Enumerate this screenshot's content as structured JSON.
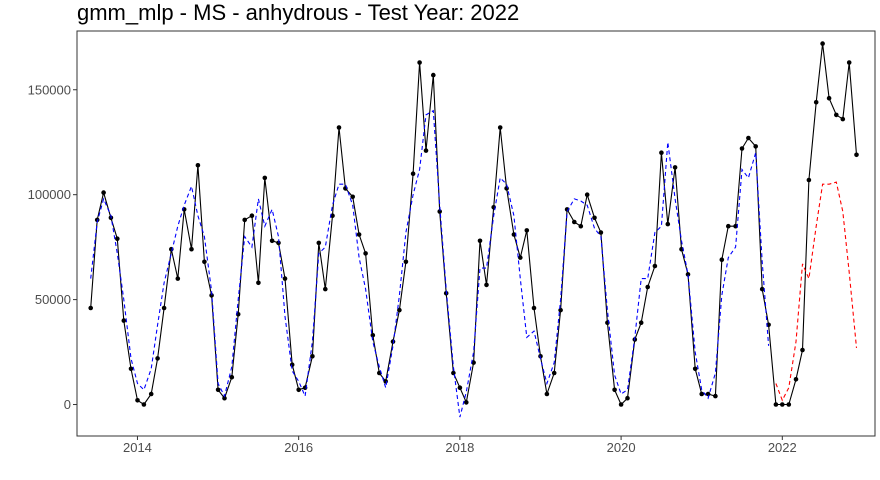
{
  "chart_data": {
    "type": "line",
    "title": "gmm_mlp - MS - anhydrous - Test Year: 2022",
    "xlabel": "",
    "ylabel": "",
    "xlim": [
      2013.25,
      2023.15
    ],
    "ylim": [
      -15000,
      178000
    ],
    "x_ticks": [
      2014,
      2016,
      2018,
      2020,
      2022
    ],
    "x_tick_labels": [
      "2014",
      "2016",
      "2018",
      "2020",
      "2022"
    ],
    "y_ticks": [
      0,
      50000,
      100000,
      150000
    ],
    "y_tick_labels": [
      "0",
      "50000",
      "100000",
      "150000"
    ],
    "grid": false,
    "legend": "none",
    "x": [
      2013.42,
      2013.5,
      2013.58,
      2013.67,
      2013.75,
      2013.83,
      2013.92,
      2014.0,
      2014.08,
      2014.17,
      2014.25,
      2014.33,
      2014.42,
      2014.5,
      2014.58,
      2014.67,
      2014.75,
      2014.83,
      2014.92,
      2015.0,
      2015.08,
      2015.17,
      2015.25,
      2015.33,
      2015.42,
      2015.5,
      2015.58,
      2015.67,
      2015.75,
      2015.83,
      2015.92,
      2016.0,
      2016.08,
      2016.17,
      2016.25,
      2016.33,
      2016.42,
      2016.5,
      2016.58,
      2016.67,
      2016.75,
      2016.83,
      2016.92,
      2017.0,
      2017.08,
      2017.17,
      2017.25,
      2017.33,
      2017.42,
      2017.5,
      2017.58,
      2017.67,
      2017.75,
      2017.83,
      2017.92,
      2018.0,
      2018.08,
      2018.17,
      2018.25,
      2018.33,
      2018.42,
      2018.5,
      2018.58,
      2018.67,
      2018.75,
      2018.83,
      2018.92,
      2019.0,
      2019.08,
      2019.17,
      2019.25,
      2019.33,
      2019.42,
      2019.5,
      2019.58,
      2019.67,
      2019.75,
      2019.83,
      2019.92,
      2020.0,
      2020.08,
      2020.17,
      2020.25,
      2020.33,
      2020.42,
      2020.5,
      2020.58,
      2020.67,
      2020.75,
      2020.83,
      2020.92,
      2021.0,
      2021.08,
      2021.17,
      2021.25,
      2021.33,
      2021.42,
      2021.5,
      2021.58,
      2021.67,
      2021.75,
      2021.83,
      2021.92,
      2022.0,
      2022.08,
      2022.17,
      2022.25,
      2022.33,
      2022.42,
      2022.5,
      2022.58,
      2022.67,
      2022.75,
      2022.83,
      2022.92
    ],
    "series": [
      {
        "color": "#000000",
        "style": "solid",
        "markers": true,
        "values": [
          46000,
          88000,
          101000,
          89000,
          79000,
          40000,
          17000,
          2000,
          0,
          5000,
          22000,
          46000,
          74000,
          60000,
          93000,
          74000,
          114000,
          68000,
          52000,
          7000,
          3000,
          13000,
          43000,
          88000,
          90000,
          58000,
          108000,
          78000,
          77000,
          60000,
          19000,
          7000,
          8000,
          23000,
          77000,
          55000,
          90000,
          132000,
          103000,
          99000,
          81000,
          72000,
          33000,
          15000,
          11000,
          30000,
          45000,
          68000,
          110000,
          163000,
          121000,
          157000,
          92000,
          53000,
          15000,
          8000,
          1000,
          20000,
          78000,
          57000,
          94000,
          132000,
          103000,
          81000,
          70000,
          83000,
          46000,
          23000,
          5000,
          15000,
          45000,
          93000,
          87000,
          85000,
          100000,
          89000,
          82000,
          39000,
          7000,
          0,
          3000,
          31000,
          39000,
          56000,
          66000,
          120000,
          86000,
          113000,
          74000,
          62000,
          17000,
          5000,
          5000,
          4000,
          69000,
          85000,
          85000,
          122000,
          127000,
          123000,
          55000,
          38000,
          0,
          0,
          0,
          12000,
          26000,
          107000,
          144000,
          172000,
          146000,
          138000,
          136000,
          163000,
          119000
        ]
      },
      {
        "color": "#0000ff",
        "style": "dashed",
        "markers": false,
        "values": [
          60000,
          87000,
          98000,
          90000,
          72000,
          50000,
          22000,
          10000,
          7000,
          17000,
          38000,
          58000,
          72000,
          85000,
          95000,
          104000,
          90000,
          80000,
          54000,
          10000,
          4000,
          18000,
          50000,
          80000,
          75000,
          98000,
          85000,
          93000,
          80000,
          42000,
          16000,
          11000,
          4000,
          30000,
          72000,
          75000,
          95000,
          105000,
          105000,
          95000,
          70000,
          55000,
          30000,
          18000,
          8000,
          28000,
          52000,
          82000,
          100000,
          112000,
          138000,
          140000,
          95000,
          55000,
          18000,
          -6000,
          6000,
          25000,
          65000,
          65000,
          90000,
          108000,
          105000,
          90000,
          60000,
          32000,
          35000,
          22000,
          10000,
          20000,
          50000,
          92000,
          98000,
          97000,
          95000,
          84000,
          80000,
          45000,
          14000,
          5000,
          7000,
          32000,
          60000,
          60000,
          82000,
          85000,
          125000,
          98000,
          78000,
          62000,
          25000,
          7000,
          3000,
          15000,
          52000,
          70000,
          75000,
          112000,
          108000,
          120000,
          68000,
          28000,
          null,
          null,
          null,
          null,
          null,
          null,
          null,
          null,
          null,
          null,
          null,
          null,
          null
        ]
      },
      {
        "color": "#ff0000",
        "style": "dashed",
        "markers": false,
        "values": [
          null,
          null,
          null,
          null,
          null,
          null,
          null,
          null,
          null,
          null,
          null,
          null,
          null,
          null,
          null,
          null,
          null,
          null,
          null,
          null,
          null,
          null,
          null,
          null,
          null,
          null,
          null,
          null,
          null,
          null,
          null,
          null,
          null,
          null,
          null,
          null,
          null,
          null,
          null,
          null,
          null,
          null,
          null,
          null,
          null,
          null,
          null,
          null,
          null,
          null,
          null,
          null,
          null,
          null,
          null,
          null,
          null,
          null,
          null,
          null,
          null,
          null,
          null,
          null,
          null,
          null,
          null,
          null,
          null,
          null,
          null,
          null,
          null,
          null,
          null,
          null,
          null,
          null,
          null,
          null,
          null,
          null,
          null,
          null,
          null,
          null,
          null,
          null,
          null,
          null,
          null,
          null,
          null,
          null,
          null,
          null,
          null,
          null,
          null,
          null,
          null,
          null,
          10000,
          2000,
          8000,
          30000,
          67000,
          60000,
          85000,
          105000,
          105000,
          106000,
          92000,
          63000,
          27000
        ]
      }
    ]
  }
}
